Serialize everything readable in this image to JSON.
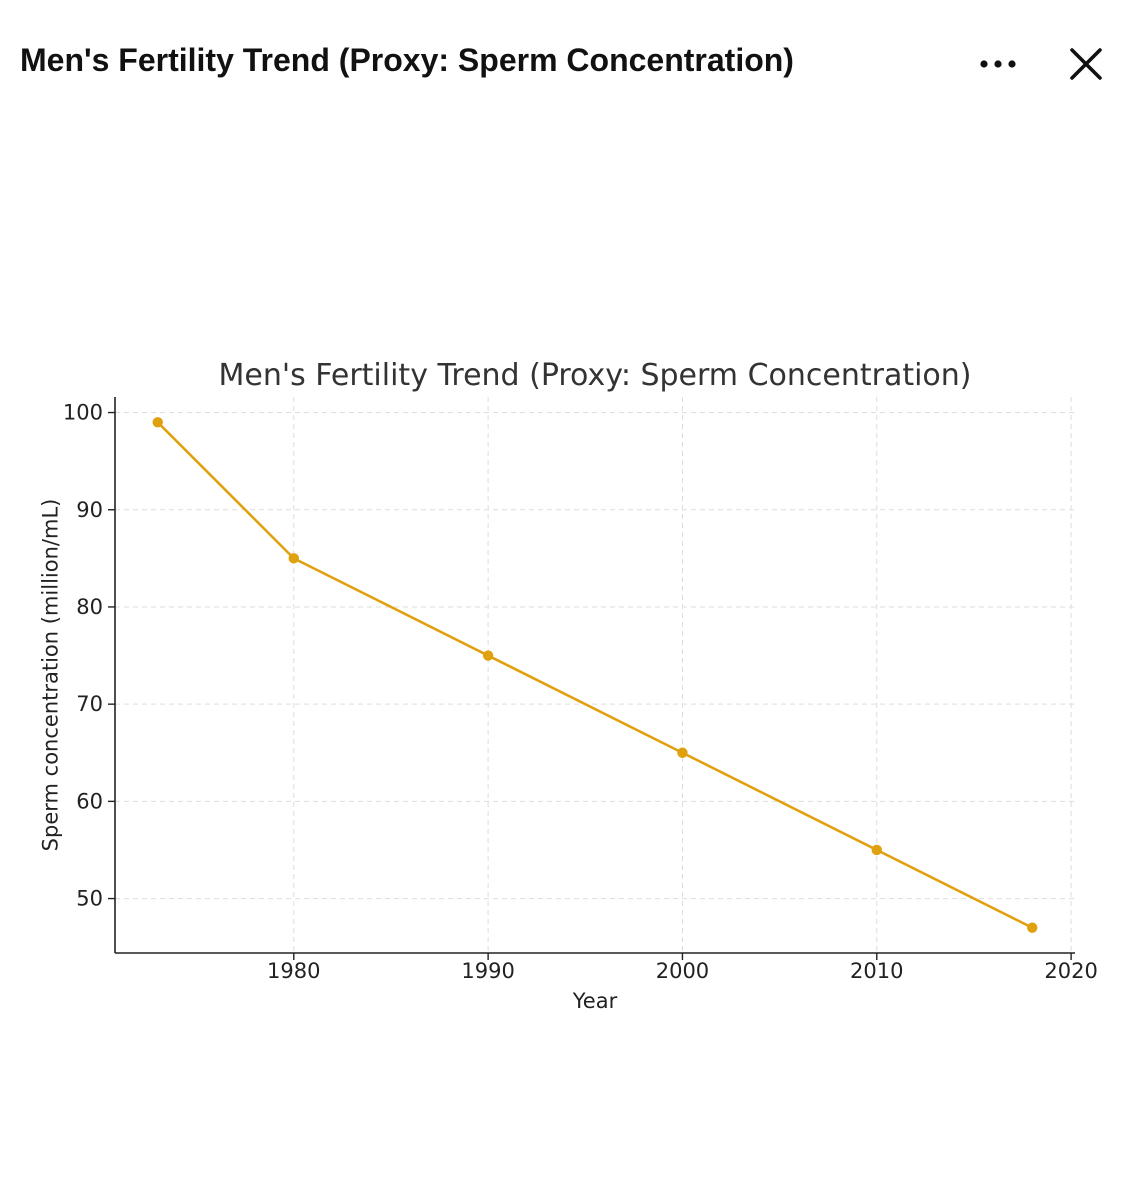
{
  "header": {
    "title": "Men's Fertility Trend (Proxy: Sperm Concentration)",
    "more_icon": "more-horizontal-icon",
    "close_icon": "close-icon"
  },
  "colors": {
    "series": "#E0A10F",
    "grid": "#dddddd",
    "axis": "#222222"
  },
  "chart_data": {
    "type": "line",
    "title": "Men's Fertility Trend (Proxy: Sperm Concentration)",
    "xlabel": "Year",
    "ylabel": "Sperm concentration (million/mL)",
    "x": [
      1973,
      1980,
      1990,
      2000,
      2010,
      2018
    ],
    "series": [
      {
        "values": [
          99,
          85,
          75,
          65,
          55,
          47
        ]
      }
    ],
    "xlim": [
      1970.8,
      2020.2
    ],
    "ylim": [
      44.4,
      101.6
    ],
    "xticks": [
      1980,
      1990,
      2000,
      2010,
      2020
    ],
    "yticks": [
      50,
      60,
      70,
      80,
      90,
      100
    ],
    "grid": true,
    "grid_style": "dashed",
    "legend": "none"
  }
}
